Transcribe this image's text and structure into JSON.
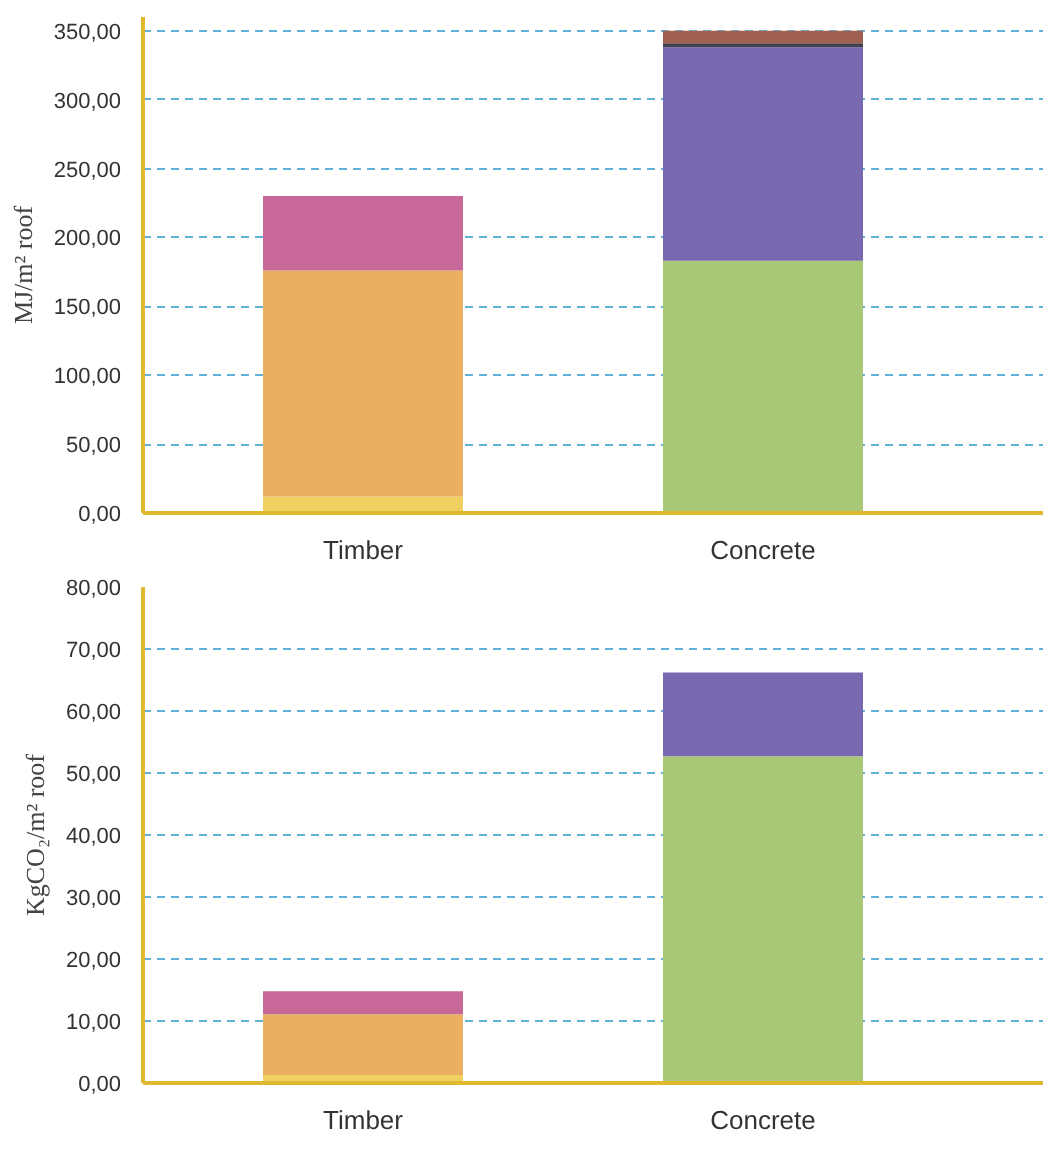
{
  "chart_data": [
    {
      "type": "bar",
      "stacked": true,
      "ylabel": "MJ/m² roof",
      "categories": [
        "Timber",
        "Concrete"
      ],
      "ylim": [
        0,
        360
      ],
      "grid": "y",
      "yticks": [
        {
          "value": 0,
          "label": "0,00"
        },
        {
          "value": 50,
          "label": "50,00"
        },
        {
          "value": 100,
          "label": "100,00"
        },
        {
          "value": 150,
          "label": "150,00"
        },
        {
          "value": 200,
          "label": "200,00"
        },
        {
          "value": 250,
          "label": "250,00"
        },
        {
          "value": 300,
          "label": "300,00"
        },
        {
          "value": 350,
          "label": "350,00"
        }
      ],
      "series": [
        {
          "color": "#f0d060",
          "values": [
            12,
            null
          ]
        },
        {
          "color": "#e8b060",
          "values": [
            164,
            null
          ]
        },
        {
          "color": "#c86898",
          "values": [
            54,
            null
          ]
        },
        {
          "color": "#a8c878",
          "values": [
            null,
            183
          ]
        },
        {
          "color": "#7868b0",
          "values": [
            null,
            155
          ]
        },
        {
          "color": "#404050",
          "values": [
            null,
            3
          ]
        },
        {
          "color": "#a06050",
          "values": [
            null,
            9
          ]
        }
      ]
    },
    {
      "type": "bar",
      "stacked": true,
      "ylabel": "KgCO₂/m² roof",
      "categories": [
        "Timber",
        "Concrete"
      ],
      "ylim": [
        0,
        80
      ],
      "grid": "y",
      "yticks": [
        {
          "value": 0,
          "label": "0,00"
        },
        {
          "value": 10,
          "label": "10,00"
        },
        {
          "value": 20,
          "label": "20,00"
        },
        {
          "value": 30,
          "label": "30,00"
        },
        {
          "value": 40,
          "label": "40,00"
        },
        {
          "value": 50,
          "label": "50,00"
        },
        {
          "value": 60,
          "label": "60,00"
        },
        {
          "value": 70,
          "label": "70,00"
        },
        {
          "value": 80,
          "label": "80,00"
        }
      ],
      "series": [
        {
          "color": "#f0d060",
          "values": [
            1.3,
            null
          ]
        },
        {
          "color": "#e8b060",
          "values": [
            9.8,
            null
          ]
        },
        {
          "color": "#c86898",
          "values": [
            3.7,
            null
          ]
        },
        {
          "color": "#a8c878",
          "values": [
            null,
            52.7
          ]
        },
        {
          "color": "#7868b0",
          "values": [
            null,
            13.5
          ]
        }
      ]
    }
  ]
}
